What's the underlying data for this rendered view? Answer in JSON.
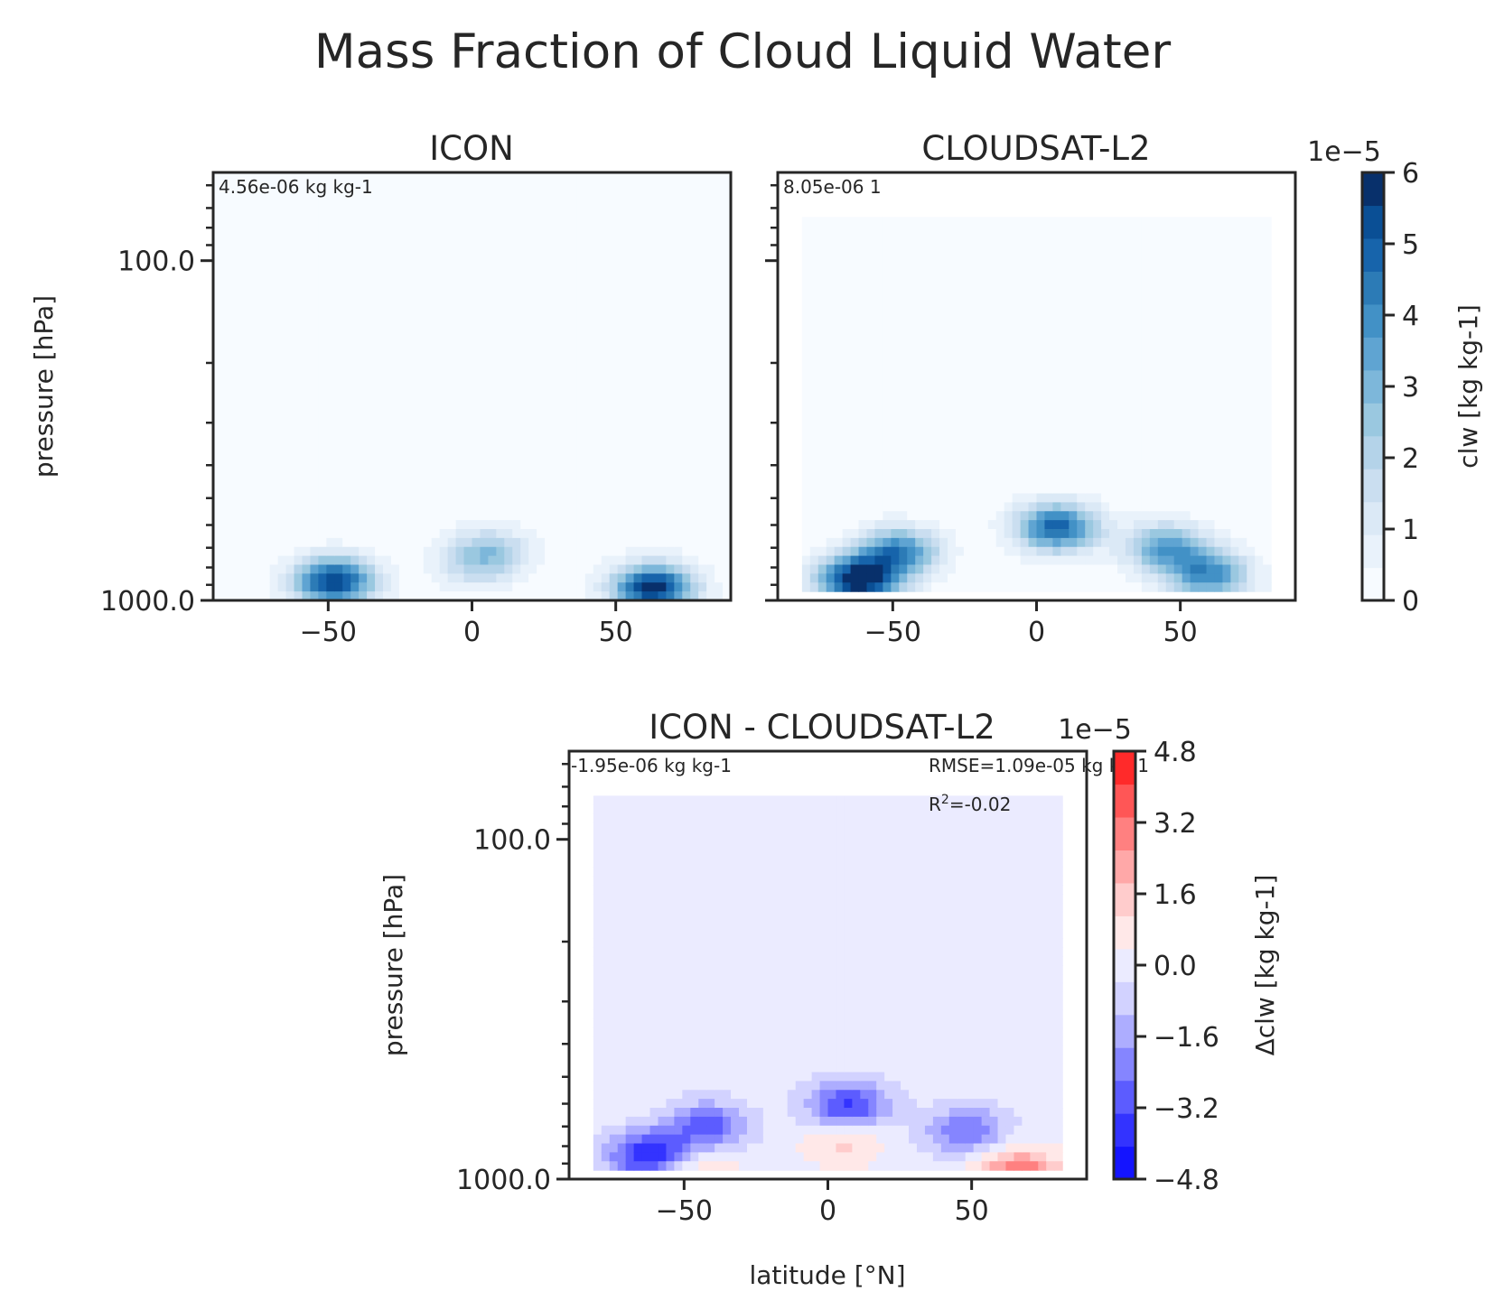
{
  "figure_title": "Mass Fraction of Cloud Liquid Water",
  "colors": {
    "blues": [
      "#f7fbff",
      "#e9f2fb",
      "#dbe9f6",
      "#cadef0",
      "#b4d3e9",
      "#9ac8e0",
      "#7db7da",
      "#5fa4d2",
      "#4291c6",
      "#2c7bb6",
      "#1764ab",
      "#0a4f95",
      "#08306b"
    ],
    "diff": [
      "#1414ff",
      "#3333ff",
      "#5c5cff",
      "#8585ff",
      "#adadff",
      "#d2d2ff",
      "#ebebff",
      "#ffe8e8",
      "#ffcccc",
      "#ffa8a8",
      "#ff8080",
      "#ff5656",
      "#ff2a2a"
    ],
    "axis": "#262626"
  },
  "chart_data": [
    {
      "type": "heatmap",
      "panel": "ICON",
      "title": "ICON",
      "annotation": "4.56e-06 kg kg-1",
      "xlabel": "",
      "ylabel": "pressure [hPa]",
      "xlim": [
        -90,
        90
      ],
      "ylim": [
        1000,
        55
      ],
      "yscale": "log",
      "xticks": [
        "−50",
        "0",
        "50"
      ],
      "xtick_values": [
        -50,
        0,
        50
      ],
      "yticks": [
        "100.0",
        "1000.0"
      ],
      "ytick_values": [
        100,
        1000
      ],
      "features": [
        {
          "lat": -48,
          "p": 880,
          "value": 5.5e-05
        },
        {
          "lat": 63,
          "p": 920,
          "value": 5.8e-05
        },
        {
          "lat": 6,
          "p": 720,
          "value": 2.2e-05
        },
        {
          "lat": 0,
          "p": 800,
          "value": 1e-05
        }
      ],
      "background_value": 1e-06
    },
    {
      "type": "heatmap",
      "panel": "CLOUDSAT-L2",
      "title": "CLOUDSAT-L2",
      "annotation": "8.05e-06 1",
      "xlim": [
        -90,
        90
      ],
      "ylim": [
        1000,
        55
      ],
      "yscale": "log",
      "xticks": [
        "−50",
        "0",
        "50"
      ],
      "xtick_values": [
        -50,
        0,
        50
      ],
      "data_lat_range": [
        -82,
        82
      ],
      "data_p_range": [
        75,
        950
      ],
      "features": [
        {
          "lat": -62,
          "p": 870,
          "value": 6e-05
        },
        {
          "lat": -48,
          "p": 720,
          "value": 4e-05
        },
        {
          "lat": 7,
          "p": 610,
          "value": 4.8e-05
        },
        {
          "lat": 45,
          "p": 700,
          "value": 3.4e-05
        },
        {
          "lat": 60,
          "p": 840,
          "value": 3.8e-05
        }
      ],
      "background_value": 1e-06
    },
    {
      "type": "heatmap",
      "panel": "ICON - CLOUDSAT-L2",
      "title": "ICON - CLOUDSAT-L2",
      "annotation": "-1.95e-06 kg kg-1",
      "stats_rmse": "RMSE=1.09e-05 kg kg-1",
      "stats_r2_prefix": "R",
      "stats_r2_sup": "2",
      "stats_r2_value": "=-0.02",
      "xlabel": "latitude [°N]",
      "ylabel": "pressure [hPa]",
      "xlim": [
        -90,
        90
      ],
      "ylim": [
        1000,
        55
      ],
      "yscale": "log",
      "xticks": [
        "−50",
        "0",
        "50"
      ],
      "xtick_values": [
        -50,
        0,
        50
      ],
      "yticks": [
        "100.0",
        "1000.0"
      ],
      "ytick_values": [
        100,
        1000
      ],
      "data_lat_range": [
        -82,
        82
      ],
      "data_p_range": [
        75,
        950
      ],
      "features": [
        {
          "lat": -62,
          "p": 850,
          "value": -4.2e-05
        },
        {
          "lat": -42,
          "p": 700,
          "value": -3e-05
        },
        {
          "lat": 7,
          "p": 610,
          "value": -3.6e-05
        },
        {
          "lat": 48,
          "p": 720,
          "value": -2.6e-05
        },
        {
          "lat": 66,
          "p": 960,
          "value": 3.4e-05
        },
        {
          "lat": -45,
          "p": 950,
          "value": 1.6e-05
        },
        {
          "lat": 5,
          "p": 780,
          "value": 1.4e-05
        }
      ]
    }
  ],
  "colorbars": {
    "abs": {
      "label": "clw [kg kg-1]",
      "offset": "1e−5",
      "ticks": [
        "0",
        "1",
        "2",
        "3",
        "4",
        "5",
        "6"
      ],
      "range": [
        0,
        6e-05
      ]
    },
    "diff": {
      "label": "Δclw [kg kg-1]",
      "offset": "1e−5",
      "ticks": [
        "−4.8",
        "−3.2",
        "−1.6",
        "0.0",
        "1.6",
        "3.2",
        "4.8"
      ],
      "range": [
        -4.8e-05,
        4.8e-05
      ]
    }
  }
}
